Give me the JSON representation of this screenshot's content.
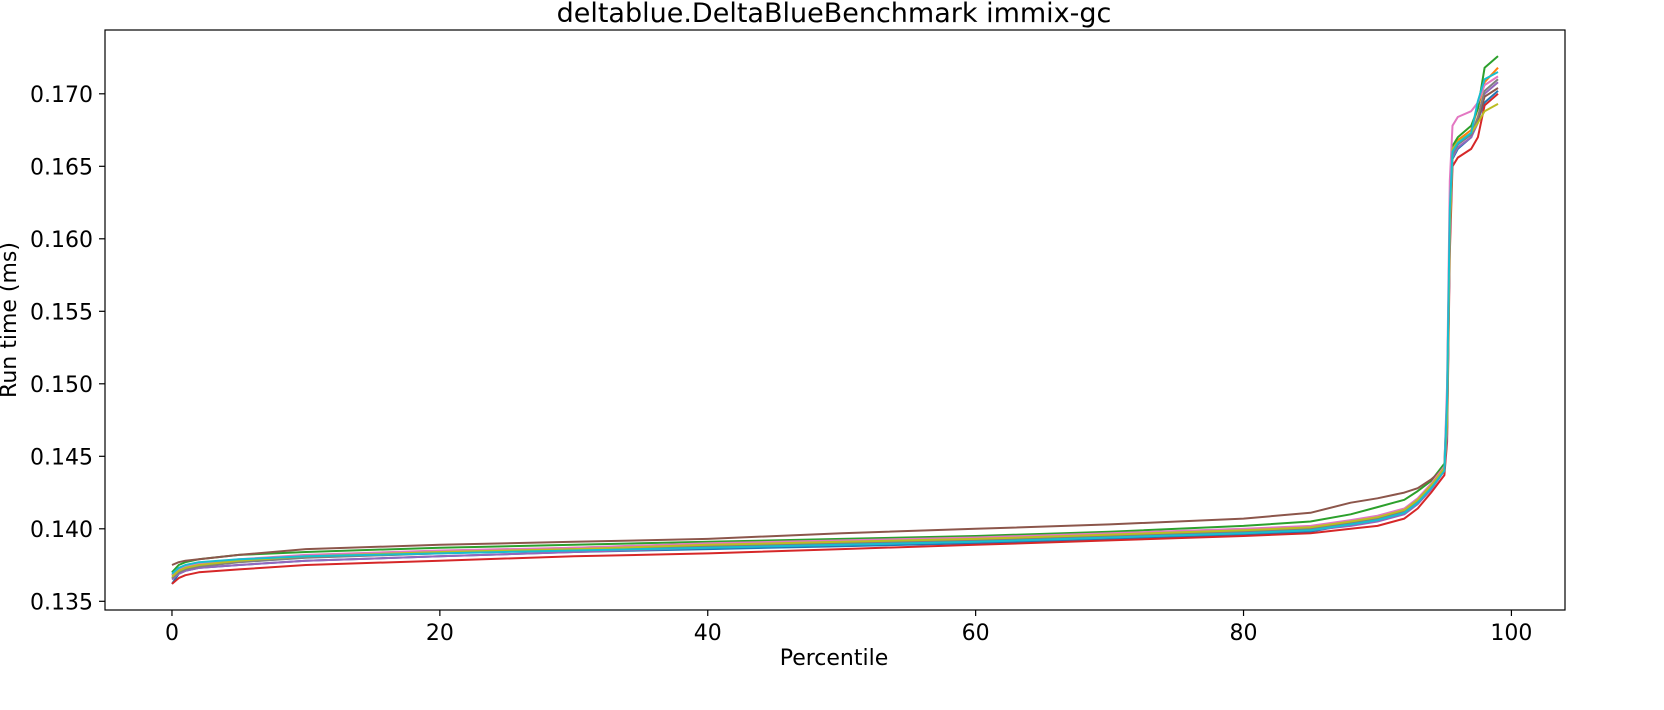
{
  "chart_data": {
    "type": "line",
    "title": "deltablue.DeltaBlueBenchmark immix-gc",
    "xlabel": "Percentile",
    "ylabel": "Run time (ms)",
    "xlim": [
      -5,
      104
    ],
    "ylim": [
      0.1344,
      0.1744
    ],
    "xticks": [
      0,
      20,
      40,
      60,
      80,
      100
    ],
    "xtick_labels": [
      "0",
      "20",
      "40",
      "60",
      "80",
      "100"
    ],
    "yticks": [
      0.135,
      0.14,
      0.145,
      0.15,
      0.155,
      0.16,
      0.165,
      0.17
    ],
    "ytick_labels": [
      "0.135",
      "0.140",
      "0.145",
      "0.150",
      "0.155",
      "0.160",
      "0.165",
      "0.170"
    ],
    "grid": false,
    "legend": "none",
    "x": [
      0,
      0.5,
      1,
      2,
      5,
      10,
      20,
      30,
      40,
      50,
      60,
      70,
      80,
      85,
      88,
      90,
      92,
      93,
      94,
      95,
      95.2,
      95.4,
      95.6,
      96,
      97,
      97.5,
      98,
      99
    ],
    "series": [
      {
        "color": "#1f77b4",
        "values": [
          0.1362,
          0.1369,
          0.1371,
          0.1373,
          0.1375,
          0.1378,
          0.1381,
          0.1384,
          0.1386,
          0.1388,
          0.139,
          0.1393,
          0.1396,
          0.1398,
          0.1403,
          0.1406,
          0.1411,
          0.1418,
          0.1428,
          0.1441,
          0.147,
          0.16,
          0.1655,
          0.1662,
          0.167,
          0.1682,
          0.1694,
          0.1702
        ]
      },
      {
        "color": "#ff7f0e",
        "values": [
          0.1368,
          0.1372,
          0.1374,
          0.1376,
          0.1378,
          0.1381,
          0.1384,
          0.1387,
          0.1389,
          0.1391,
          0.1393,
          0.1396,
          0.1399,
          0.1401,
          0.1405,
          0.1408,
          0.1413,
          0.142,
          0.143,
          0.1443,
          0.148,
          0.161,
          0.1662,
          0.1668,
          0.1675,
          0.169,
          0.1708,
          0.1718
        ]
      },
      {
        "color": "#2ca02c",
        "values": [
          0.137,
          0.1375,
          0.1377,
          0.1379,
          0.1382,
          0.1384,
          0.1387,
          0.1389,
          0.1391,
          0.1393,
          0.1395,
          0.1398,
          0.1402,
          0.1405,
          0.141,
          0.1415,
          0.142,
          0.1426,
          0.1433,
          0.1445,
          0.149,
          0.162,
          0.1664,
          0.167,
          0.1678,
          0.169,
          0.1718,
          0.1726
        ]
      },
      {
        "color": "#d62728",
        "values": [
          0.1362,
          0.1366,
          0.1368,
          0.137,
          0.1372,
          0.1375,
          0.1378,
          0.1381,
          0.1383,
          0.1386,
          0.1389,
          0.1392,
          0.1395,
          0.1397,
          0.14,
          0.1402,
          0.1407,
          0.1414,
          0.1425,
          0.1437,
          0.146,
          0.159,
          0.165,
          0.1656,
          0.1662,
          0.167,
          0.1692,
          0.17
        ]
      },
      {
        "color": "#9467bd",
        "values": [
          0.1365,
          0.1369,
          0.1371,
          0.1373,
          0.1375,
          0.1378,
          0.1381,
          0.1384,
          0.1387,
          0.1389,
          0.1391,
          0.1394,
          0.1397,
          0.1399,
          0.1402,
          0.1405,
          0.141,
          0.1417,
          0.1427,
          0.144,
          0.1465,
          0.16,
          0.1656,
          0.1663,
          0.167,
          0.168,
          0.17,
          0.1708
        ]
      },
      {
        "color": "#8c564b",
        "values": [
          0.1375,
          0.1377,
          0.1378,
          0.1379,
          0.1382,
          0.1386,
          0.1389,
          0.1391,
          0.1393,
          0.1397,
          0.14,
          0.1403,
          0.1407,
          0.1411,
          0.1418,
          0.1421,
          0.1425,
          0.1428,
          0.1434,
          0.1442,
          0.148,
          0.161,
          0.166,
          0.1665,
          0.1672,
          0.1682,
          0.1698,
          0.1704
        ]
      },
      {
        "color": "#e377c2",
        "values": [
          0.1368,
          0.1372,
          0.1374,
          0.1376,
          0.1379,
          0.1382,
          0.1385,
          0.1387,
          0.139,
          0.1392,
          0.1394,
          0.1397,
          0.14,
          0.1402,
          0.1406,
          0.1409,
          0.1414,
          0.1421,
          0.1431,
          0.1443,
          0.15,
          0.164,
          0.1678,
          0.1684,
          0.1688,
          0.1694,
          0.1706,
          0.1712
        ]
      },
      {
        "color": "#7f7f7f",
        "values": [
          0.1366,
          0.137,
          0.1372,
          0.1374,
          0.1377,
          0.138,
          0.1383,
          0.1386,
          0.1388,
          0.139,
          0.1392,
          0.1395,
          0.1398,
          0.14,
          0.1404,
          0.1407,
          0.1412,
          0.1419,
          0.1429,
          0.1441,
          0.147,
          0.1605,
          0.1658,
          0.1665,
          0.1672,
          0.1684,
          0.1702,
          0.171
        ]
      },
      {
        "color": "#bcbd22",
        "values": [
          0.1367,
          0.1371,
          0.1373,
          0.1375,
          0.1378,
          0.1381,
          0.1384,
          0.1386,
          0.1389,
          0.1391,
          0.1393,
          0.1396,
          0.1399,
          0.1401,
          0.1405,
          0.1408,
          0.1413,
          0.142,
          0.143,
          0.1442,
          0.1475,
          0.1605,
          0.1662,
          0.1667,
          0.1673,
          0.168,
          0.1688,
          0.1693
        ]
      },
      {
        "color": "#17becf",
        "values": [
          0.1369,
          0.1373,
          0.1375,
          0.1377,
          0.1379,
          0.1381,
          0.1383,
          0.1385,
          0.1387,
          0.1389,
          0.1391,
          0.1394,
          0.1397,
          0.1399,
          0.1403,
          0.1406,
          0.1411,
          0.1418,
          0.1428,
          0.144,
          0.149,
          0.162,
          0.166,
          0.1666,
          0.1673,
          0.1695,
          0.171,
          0.1715
        ]
      }
    ]
  }
}
